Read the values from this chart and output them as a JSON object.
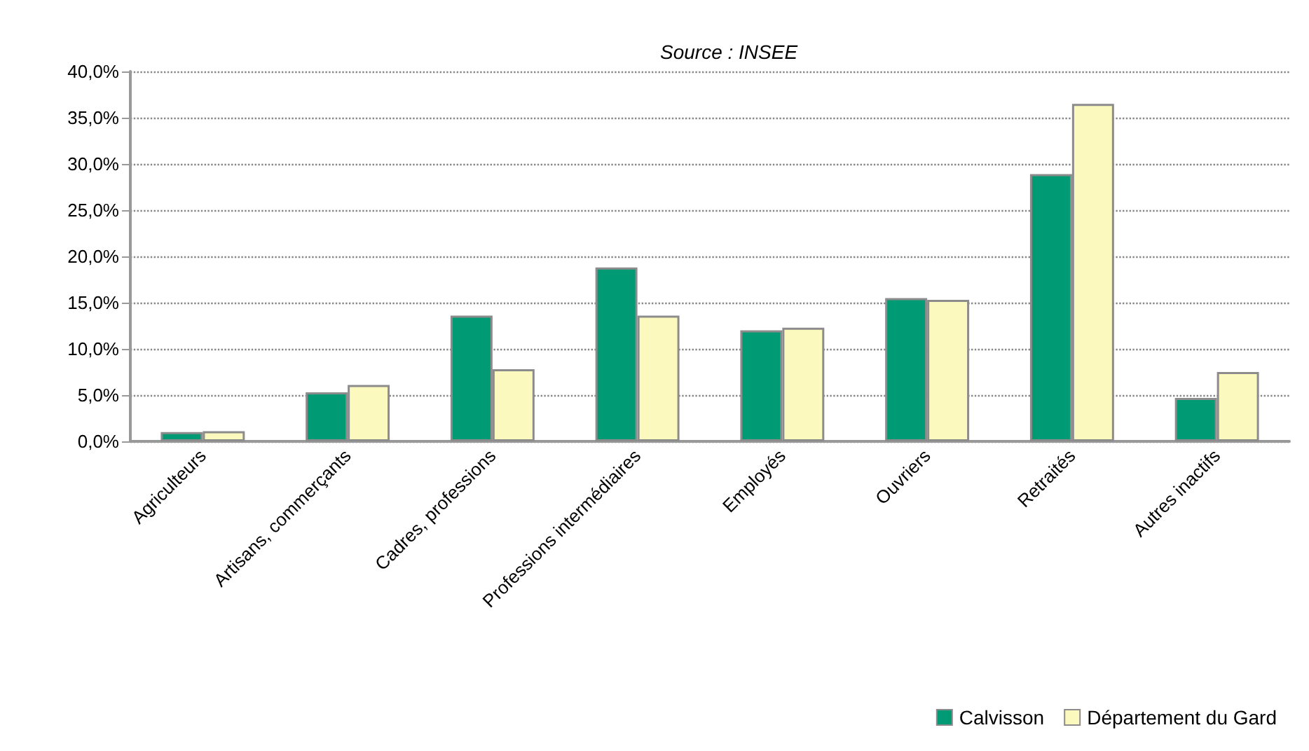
{
  "chart_data": {
    "type": "bar",
    "annotations": [
      "Source : INSEE"
    ],
    "categories": [
      "Agriculteurs",
      "Artisans, commerçants",
      "Cadres, professions",
      "Professions intermédiaires",
      "Employés",
      "Ouvriers",
      "Retraités",
      "Autres inactifs"
    ],
    "series": [
      {
        "name": "Calvisson",
        "color": "#009a74",
        "values": [
          1.0,
          5.3,
          13.6,
          18.8,
          12.0,
          15.5,
          28.9,
          4.7
        ]
      },
      {
        "name": "Département du Gard",
        "color": "#fcf9be",
        "values": [
          1.1,
          6.1,
          7.8,
          13.6,
          12.3,
          15.3,
          36.5,
          7.5
        ]
      }
    ],
    "ylim": [
      0,
      40
    ],
    "yticks": [
      {
        "value": 0,
        "label": "0,0%"
      },
      {
        "value": 5,
        "label": "5,0%"
      },
      {
        "value": 10,
        "label": "10,0%"
      },
      {
        "value": 15,
        "label": "15,0%"
      },
      {
        "value": 20,
        "label": "20,0%"
      },
      {
        "value": 25,
        "label": "25,0%"
      },
      {
        "value": 30,
        "label": "30,0%"
      },
      {
        "value": 35,
        "label": "35,0%"
      },
      {
        "value": 40,
        "label": "40,0%"
      }
    ],
    "grid": "y",
    "legend": "bottom right"
  }
}
